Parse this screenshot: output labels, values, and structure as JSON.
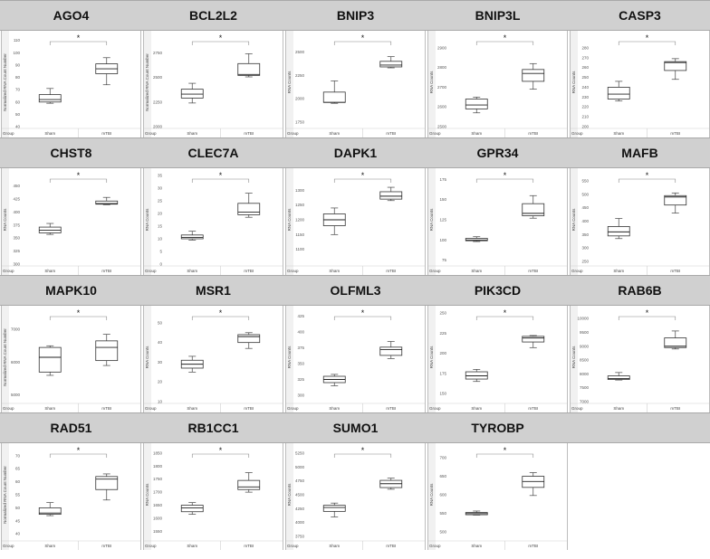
{
  "group_label": "Group",
  "categories": [
    "Sham",
    "mTBI"
  ],
  "significance": "*",
  "chart_data": [
    {
      "type": "box",
      "title": "AGO4",
      "ylabel": "Normalized RNA Count Number",
      "ylim": [
        40,
        112
      ],
      "ticks": [
        40,
        50,
        60,
        70,
        80,
        90,
        100,
        110
      ],
      "boxes": [
        {
          "category": "Sham",
          "min": 59,
          "q1": 60,
          "median": 62,
          "q3": 66,
          "max": 71
        },
        {
          "category": "mTBI",
          "min": 74,
          "q1": 83,
          "median": 87,
          "q3": 91,
          "max": 96
        }
      ],
      "sig": "*"
    },
    {
      "type": "box",
      "title": "BCL2L2",
      "ylabel": "Normalized RNA Count Number",
      "ylim": [
        2000,
        2900
      ],
      "ticks": [
        2000,
        2250,
        2500,
        2750
      ],
      "boxes": [
        {
          "category": "Sham",
          "min": 2240,
          "q1": 2290,
          "median": 2330,
          "q3": 2380,
          "max": 2440
        },
        {
          "category": "mTBI",
          "min": 2505,
          "q1": 2520,
          "median": 2530,
          "q3": 2640,
          "max": 2740
        }
      ],
      "sig": "*"
    },
    {
      "type": "box",
      "title": "BNIP3",
      "ylabel": "RNA Counts",
      "ylim": [
        1700,
        2650
      ],
      "ticks": [
        1750,
        2000,
        2250,
        2500
      ],
      "boxes": [
        {
          "category": "Sham",
          "min": 1950,
          "q1": 1960,
          "median": 1960,
          "q3": 2070,
          "max": 2190
        },
        {
          "category": "mTBI",
          "min": 2330,
          "q1": 2340,
          "median": 2360,
          "q3": 2400,
          "max": 2450
        }
      ],
      "sig": "*"
    },
    {
      "type": "box",
      "title": "BNIP3L",
      "ylabel": "RNA Counts",
      "ylim": [
        2500,
        2950
      ],
      "ticks": [
        2500,
        2600,
        2700,
        2800,
        2900
      ],
      "boxes": [
        {
          "category": "Sham",
          "min": 2570,
          "q1": 2590,
          "median": 2610,
          "q3": 2640,
          "max": 2650
        },
        {
          "category": "mTBI",
          "min": 2690,
          "q1": 2730,
          "median": 2770,
          "q3": 2790,
          "max": 2820
        }
      ],
      "sig": "*"
    },
    {
      "type": "box",
      "title": "CASP3",
      "ylabel": "RNA Counts",
      "ylim": [
        200,
        290
      ],
      "ticks": [
        200,
        210,
        220,
        230,
        240,
        250,
        260,
        270,
        280
      ],
      "boxes": [
        {
          "category": "Sham",
          "min": 226,
          "q1": 228,
          "median": 233,
          "q3": 240,
          "max": 246
        },
        {
          "category": "mTBI",
          "min": 248,
          "q1": 257,
          "median": 265,
          "q3": 266,
          "max": 269
        }
      ],
      "sig": "*"
    },
    {
      "type": "box",
      "title": "CHST8",
      "ylabel": "RNA Counts",
      "ylim": [
        300,
        470
      ],
      "ticks": [
        300,
        325,
        350,
        375,
        400,
        425,
        450
      ],
      "boxes": [
        {
          "category": "Sham",
          "min": 357,
          "q1": 360,
          "median": 365,
          "q3": 371,
          "max": 378
        },
        {
          "category": "mTBI",
          "min": 414,
          "q1": 415,
          "median": 416,
          "q3": 421,
          "max": 428
        }
      ],
      "sig": "*"
    },
    {
      "type": "box",
      "title": "CLEC7A",
      "ylabel": "RNA Counts",
      "ylim": [
        0,
        35
      ],
      "ticks": [
        0,
        5,
        10,
        15,
        20,
        25,
        30,
        35
      ],
      "boxes": [
        {
          "category": "Sham",
          "min": 9.5,
          "q1": 10,
          "median": 10.5,
          "q3": 11.5,
          "max": 13
        },
        {
          "category": "mTBI",
          "min": 18.5,
          "q1": 19.5,
          "median": 20.5,
          "q3": 24,
          "max": 28
        }
      ],
      "sig": "*"
    },
    {
      "type": "box",
      "title": "DAPK1",
      "ylabel": "RNA Counts",
      "ylim": [
        1050,
        1350
      ],
      "ticks": [
        1100,
        1150,
        1200,
        1250,
        1300
      ],
      "boxes": [
        {
          "category": "Sham",
          "min": 1150,
          "q1": 1180,
          "median": 1200,
          "q3": 1220,
          "max": 1240
        },
        {
          "category": "mTBI",
          "min": 1265,
          "q1": 1270,
          "median": 1280,
          "q3": 1295,
          "max": 1310
        }
      ],
      "sig": "*"
    },
    {
      "type": "box",
      "title": "GPR34",
      "ylabel": "RNA Counts",
      "ylim": [
        70,
        180
      ],
      "ticks": [
        75,
        100,
        125,
        150,
        175
      ],
      "boxes": [
        {
          "category": "Sham",
          "min": 98,
          "q1": 99,
          "median": 100,
          "q3": 102,
          "max": 104
        },
        {
          "category": "mTBI",
          "min": 127,
          "q1": 130,
          "median": 133,
          "q3": 145,
          "max": 155
        }
      ],
      "sig": "*"
    },
    {
      "type": "box",
      "title": "MAFB",
      "ylabel": "RNA Counts",
      "ylim": [
        240,
        570
      ],
      "ticks": [
        250,
        300,
        350,
        400,
        450,
        500,
        550
      ],
      "boxes": [
        {
          "category": "Sham",
          "min": 335,
          "q1": 345,
          "median": 360,
          "q3": 380,
          "max": 410
        },
        {
          "category": "mTBI",
          "min": 430,
          "q1": 460,
          "median": 490,
          "q3": 495,
          "max": 505
        }
      ],
      "sig": "*"
    },
    {
      "type": "box",
      "title": "MAPK10",
      "ylabel": "Normalized RNA Count Number",
      "ylim": [
        4800,
        7500
      ],
      "ticks": [
        5000,
        6000,
        7000
      ],
      "boxes": [
        {
          "category": "Sham",
          "min": 5600,
          "q1": 5700,
          "median": 6150,
          "q3": 6450,
          "max": 6500
        },
        {
          "category": "mTBI",
          "min": 5900,
          "q1": 6050,
          "median": 6450,
          "q3": 6650,
          "max": 6850
        }
      ],
      "sig": "*"
    },
    {
      "type": "box",
      "title": "MSR1",
      "ylabel": "RNA Counts",
      "ylim": [
        10,
        55
      ],
      "ticks": [
        10,
        20,
        30,
        40,
        50
      ],
      "boxes": [
        {
          "category": "Sham",
          "min": 25,
          "q1": 27,
          "median": 29,
          "q3": 31,
          "max": 33
        },
        {
          "category": "mTBI",
          "min": 37,
          "q1": 40,
          "median": 43,
          "q3": 44,
          "max": 45
        }
      ],
      "sig": "*"
    },
    {
      "type": "box",
      "title": "OLFML3",
      "ylabel": "RNA Counts",
      "ylim": [
        290,
        430
      ],
      "ticks": [
        300,
        325,
        350,
        375,
        400,
        425
      ],
      "boxes": [
        {
          "category": "Sham",
          "min": 315,
          "q1": 320,
          "median": 325,
          "q3": 330,
          "max": 333
        },
        {
          "category": "mTBI",
          "min": 358,
          "q1": 363,
          "median": 372,
          "q3": 376,
          "max": 385
        }
      ],
      "sig": "*"
    },
    {
      "type": "box",
      "title": "PIK3CD",
      "ylabel": "RNA Counts",
      "ylim": [
        140,
        250
      ],
      "ticks": [
        150,
        175,
        200,
        225,
        250
      ],
      "boxes": [
        {
          "category": "Sham",
          "min": 165,
          "q1": 168,
          "median": 172,
          "q3": 177,
          "max": 180
        },
        {
          "category": "mTBI",
          "min": 207,
          "q1": 214,
          "median": 219,
          "q3": 221,
          "max": 222
        }
      ],
      "sig": "*"
    },
    {
      "type": "box",
      "title": "RAB6B",
      "ylabel": "RNA Counts",
      "ylim": [
        7000,
        10200
      ],
      "ticks": [
        7000,
        7500,
        8000,
        8500,
        9000,
        9500,
        10000
      ],
      "boxes": [
        {
          "category": "Sham",
          "min": 7780,
          "q1": 7800,
          "median": 7830,
          "q3": 7930,
          "max": 8050
        },
        {
          "category": "mTBI",
          "min": 8900,
          "q1": 8950,
          "median": 9000,
          "q3": 9300,
          "max": 9550
        }
      ],
      "sig": "*"
    },
    {
      "type": "box",
      "title": "RAD51",
      "ylabel": "Normalized RNA Count Number",
      "ylim": [
        38,
        72
      ],
      "ticks": [
        40,
        45,
        50,
        55,
        60,
        65,
        70
      ],
      "boxes": [
        {
          "category": "Sham",
          "min": 47,
          "q1": 47.5,
          "median": 48,
          "q3": 50,
          "max": 52
        },
        {
          "category": "mTBI",
          "min": 53,
          "q1": 57,
          "median": 61,
          "q3": 62,
          "max": 63
        }
      ],
      "sig": "*"
    },
    {
      "type": "box",
      "title": "RB1CC1",
      "ylabel": "RNA Counts",
      "ylim": [
        1520,
        1860
      ],
      "ticks": [
        1550,
        1600,
        1650,
        1700,
        1750,
        1800,
        1850
      ],
      "boxes": [
        {
          "category": "Sham",
          "min": 1615,
          "q1": 1625,
          "median": 1640,
          "q3": 1650,
          "max": 1660
        },
        {
          "category": "mTBI",
          "min": 1700,
          "q1": 1710,
          "median": 1720,
          "q3": 1745,
          "max": 1775
        }
      ],
      "sig": "*"
    },
    {
      "type": "box",
      "title": "SUMO1",
      "ylabel": "RNA Counts",
      "ylim": [
        3700,
        5300
      ],
      "ticks": [
        3750,
        4000,
        4250,
        4500,
        4750,
        5000,
        5250
      ],
      "boxes": [
        {
          "category": "Sham",
          "min": 4100,
          "q1": 4200,
          "median": 4270,
          "q3": 4310,
          "max": 4350
        },
        {
          "category": "mTBI",
          "min": 4600,
          "q1": 4630,
          "median": 4700,
          "q3": 4760,
          "max": 4800
        }
      ],
      "sig": "*"
    },
    {
      "type": "box",
      "title": "TYROBP",
      "ylabel": "RNA Counts",
      "ylim": [
        480,
        720
      ],
      "ticks": [
        500,
        550,
        600,
        650,
        700
      ],
      "boxes": [
        {
          "category": "Sham",
          "min": 545,
          "q1": 546,
          "median": 549,
          "q3": 552,
          "max": 556
        },
        {
          "category": "mTBI",
          "min": 598,
          "q1": 620,
          "median": 636,
          "q3": 650,
          "max": 660
        }
      ],
      "sig": "*"
    }
  ]
}
